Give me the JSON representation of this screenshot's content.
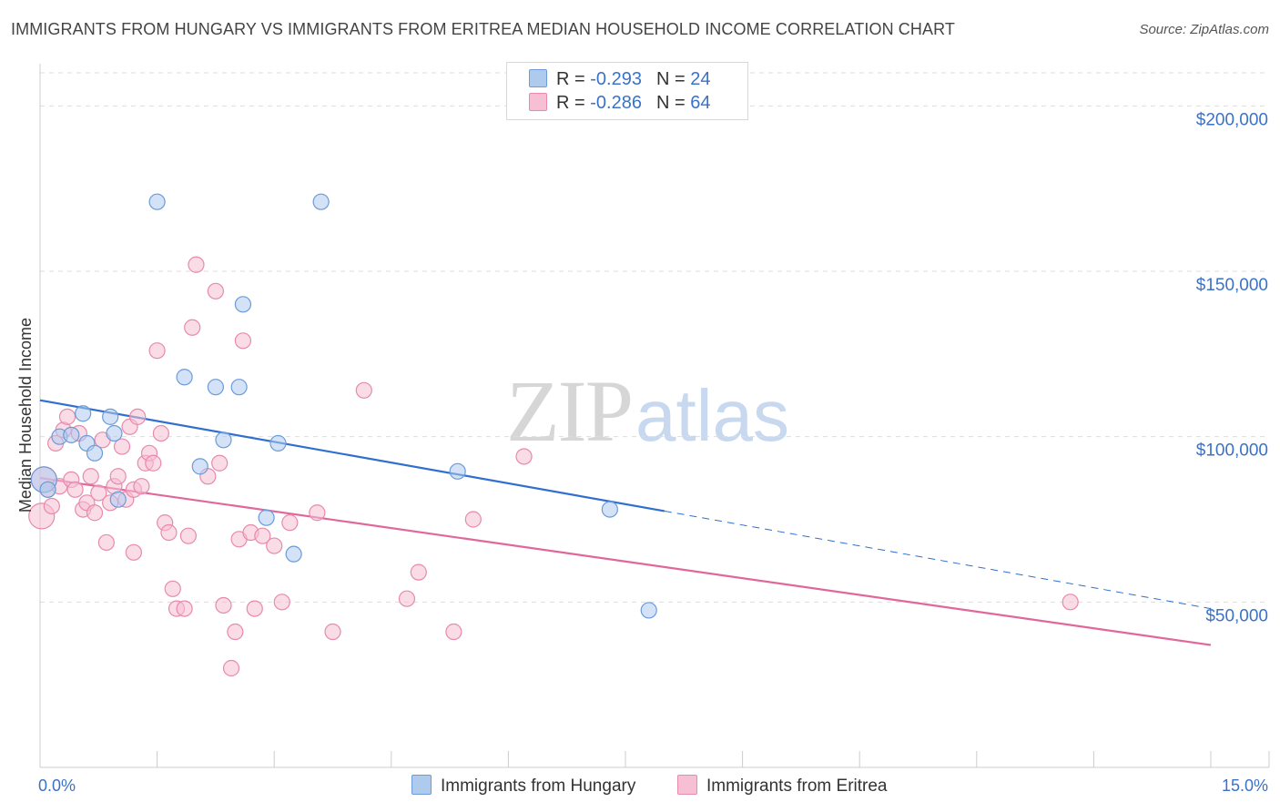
{
  "title": "IMMIGRANTS FROM HUNGARY VS IMMIGRANTS FROM ERITREA MEDIAN HOUSEHOLD INCOME CORRELATION CHART",
  "source": "Source: ZipAtlas.com",
  "watermark": {
    "zip": "ZIP",
    "atlas": "atlas"
  },
  "colors": {
    "hungary_fill": "#aecbee",
    "hungary_stroke": "#6c9bd8",
    "hungary_line": "#2f6fcf",
    "eritrea_fill": "#f6bfd3",
    "eritrea_stroke": "#e88aab",
    "eritrea_line": "#e0679a",
    "axis_text": "#3a72c8",
    "grid": "#dddddd"
  },
  "legend": {
    "hungary": {
      "r_label": "R =",
      "r_value": "-0.293",
      "n_label": "N =",
      "n_value": "24"
    },
    "eritrea": {
      "r_label": "R =",
      "r_value": "-0.286",
      "n_label": "N =",
      "n_value": "64"
    }
  },
  "chart_data": {
    "type": "scatter",
    "title": "IMMIGRANTS FROM HUNGARY VS IMMIGRANTS FROM ERITREA MEDIAN HOUSEHOLD INCOME CORRELATION CHART",
    "xlabel": "",
    "ylabel": "Median Household Income",
    "xlim": [
      0,
      15
    ],
    "ylim": [
      0,
      210000
    ],
    "x_tick_labels": [
      "0.0%",
      "15.0%"
    ],
    "y_ticks": [
      50000,
      100000,
      150000,
      200000
    ],
    "y_tick_labels": [
      "$50,000",
      "$100,000",
      "$150,000",
      "$200,000"
    ],
    "grid": true,
    "legend_position": "top-center",
    "series": [
      {
        "name": "Immigrants from Hungary",
        "points": [
          [
            0.05,
            87000
          ],
          [
            0.1,
            84000
          ],
          [
            0.25,
            100000
          ],
          [
            0.4,
            100500
          ],
          [
            0.55,
            107000
          ],
          [
            0.6,
            98000
          ],
          [
            0.9,
            106000
          ],
          [
            0.95,
            101000
          ],
          [
            1.0,
            81000
          ],
          [
            1.5,
            171000
          ],
          [
            1.85,
            118000
          ],
          [
            2.05,
            91000
          ],
          [
            2.25,
            115000
          ],
          [
            2.35,
            99000
          ],
          [
            2.55,
            115000
          ],
          [
            2.6,
            140000
          ],
          [
            2.9,
            75500
          ],
          [
            3.05,
            98000
          ],
          [
            3.25,
            64500
          ],
          [
            3.6,
            171000
          ],
          [
            5.35,
            89500
          ],
          [
            7.3,
            78000
          ],
          [
            7.8,
            47500
          ],
          [
            0.7,
            95000
          ]
        ],
        "trend": {
          "x_start": 0.0,
          "y_start": 111000,
          "x_solid_end": 8.0,
          "y_solid_end": 77500,
          "x_end": 15.0,
          "y_end": 48000
        }
      },
      {
        "name": "Immigrants from Eritrea",
        "points": [
          [
            0.02,
            76000
          ],
          [
            0.05,
            87000
          ],
          [
            0.1,
            84000
          ],
          [
            0.15,
            79000
          ],
          [
            0.2,
            98000
          ],
          [
            0.25,
            85000
          ],
          [
            0.3,
            102000
          ],
          [
            0.35,
            106000
          ],
          [
            0.4,
            87000
          ],
          [
            0.45,
            84000
          ],
          [
            0.5,
            101000
          ],
          [
            0.55,
            78000
          ],
          [
            0.6,
            80000
          ],
          [
            0.65,
            88000
          ],
          [
            0.7,
            77000
          ],
          [
            0.75,
            83000
          ],
          [
            0.8,
            99000
          ],
          [
            0.85,
            68000
          ],
          [
            0.9,
            80000
          ],
          [
            0.95,
            85000
          ],
          [
            1.0,
            88000
          ],
          [
            1.05,
            97000
          ],
          [
            1.1,
            81000
          ],
          [
            1.15,
            103000
          ],
          [
            1.2,
            84000
          ],
          [
            1.25,
            106000
          ],
          [
            1.3,
            85000
          ],
          [
            1.35,
            92000
          ],
          [
            1.4,
            95000
          ],
          [
            1.45,
            92000
          ],
          [
            1.5,
            126000
          ],
          [
            1.55,
            101000
          ],
          [
            1.6,
            74000
          ],
          [
            1.65,
            71000
          ],
          [
            1.7,
            54000
          ],
          [
            1.75,
            48000
          ],
          [
            1.85,
            48000
          ],
          [
            1.9,
            70000
          ],
          [
            1.95,
            133000
          ],
          [
            2.0,
            152000
          ],
          [
            2.15,
            88000
          ],
          [
            2.25,
            144000
          ],
          [
            2.3,
            92000
          ],
          [
            2.35,
            49000
          ],
          [
            2.45,
            30000
          ],
          [
            2.5,
            41000
          ],
          [
            2.55,
            69000
          ],
          [
            2.6,
            129000
          ],
          [
            2.7,
            71000
          ],
          [
            2.75,
            48000
          ],
          [
            2.85,
            70000
          ],
          [
            3.0,
            67000
          ],
          [
            3.1,
            50000
          ],
          [
            3.2,
            74000
          ],
          [
            3.55,
            77000
          ],
          [
            3.75,
            41000
          ],
          [
            4.15,
            114000
          ],
          [
            4.7,
            51000
          ],
          [
            4.85,
            59000
          ],
          [
            5.3,
            41000
          ],
          [
            5.55,
            75000
          ],
          [
            6.2,
            94000
          ],
          [
            13.2,
            50000
          ],
          [
            1.2,
            65000
          ]
        ],
        "trend": {
          "x_start": 0.0,
          "y_start": 87500,
          "x_end": 15.0,
          "y_end": 37000
        }
      }
    ]
  }
}
